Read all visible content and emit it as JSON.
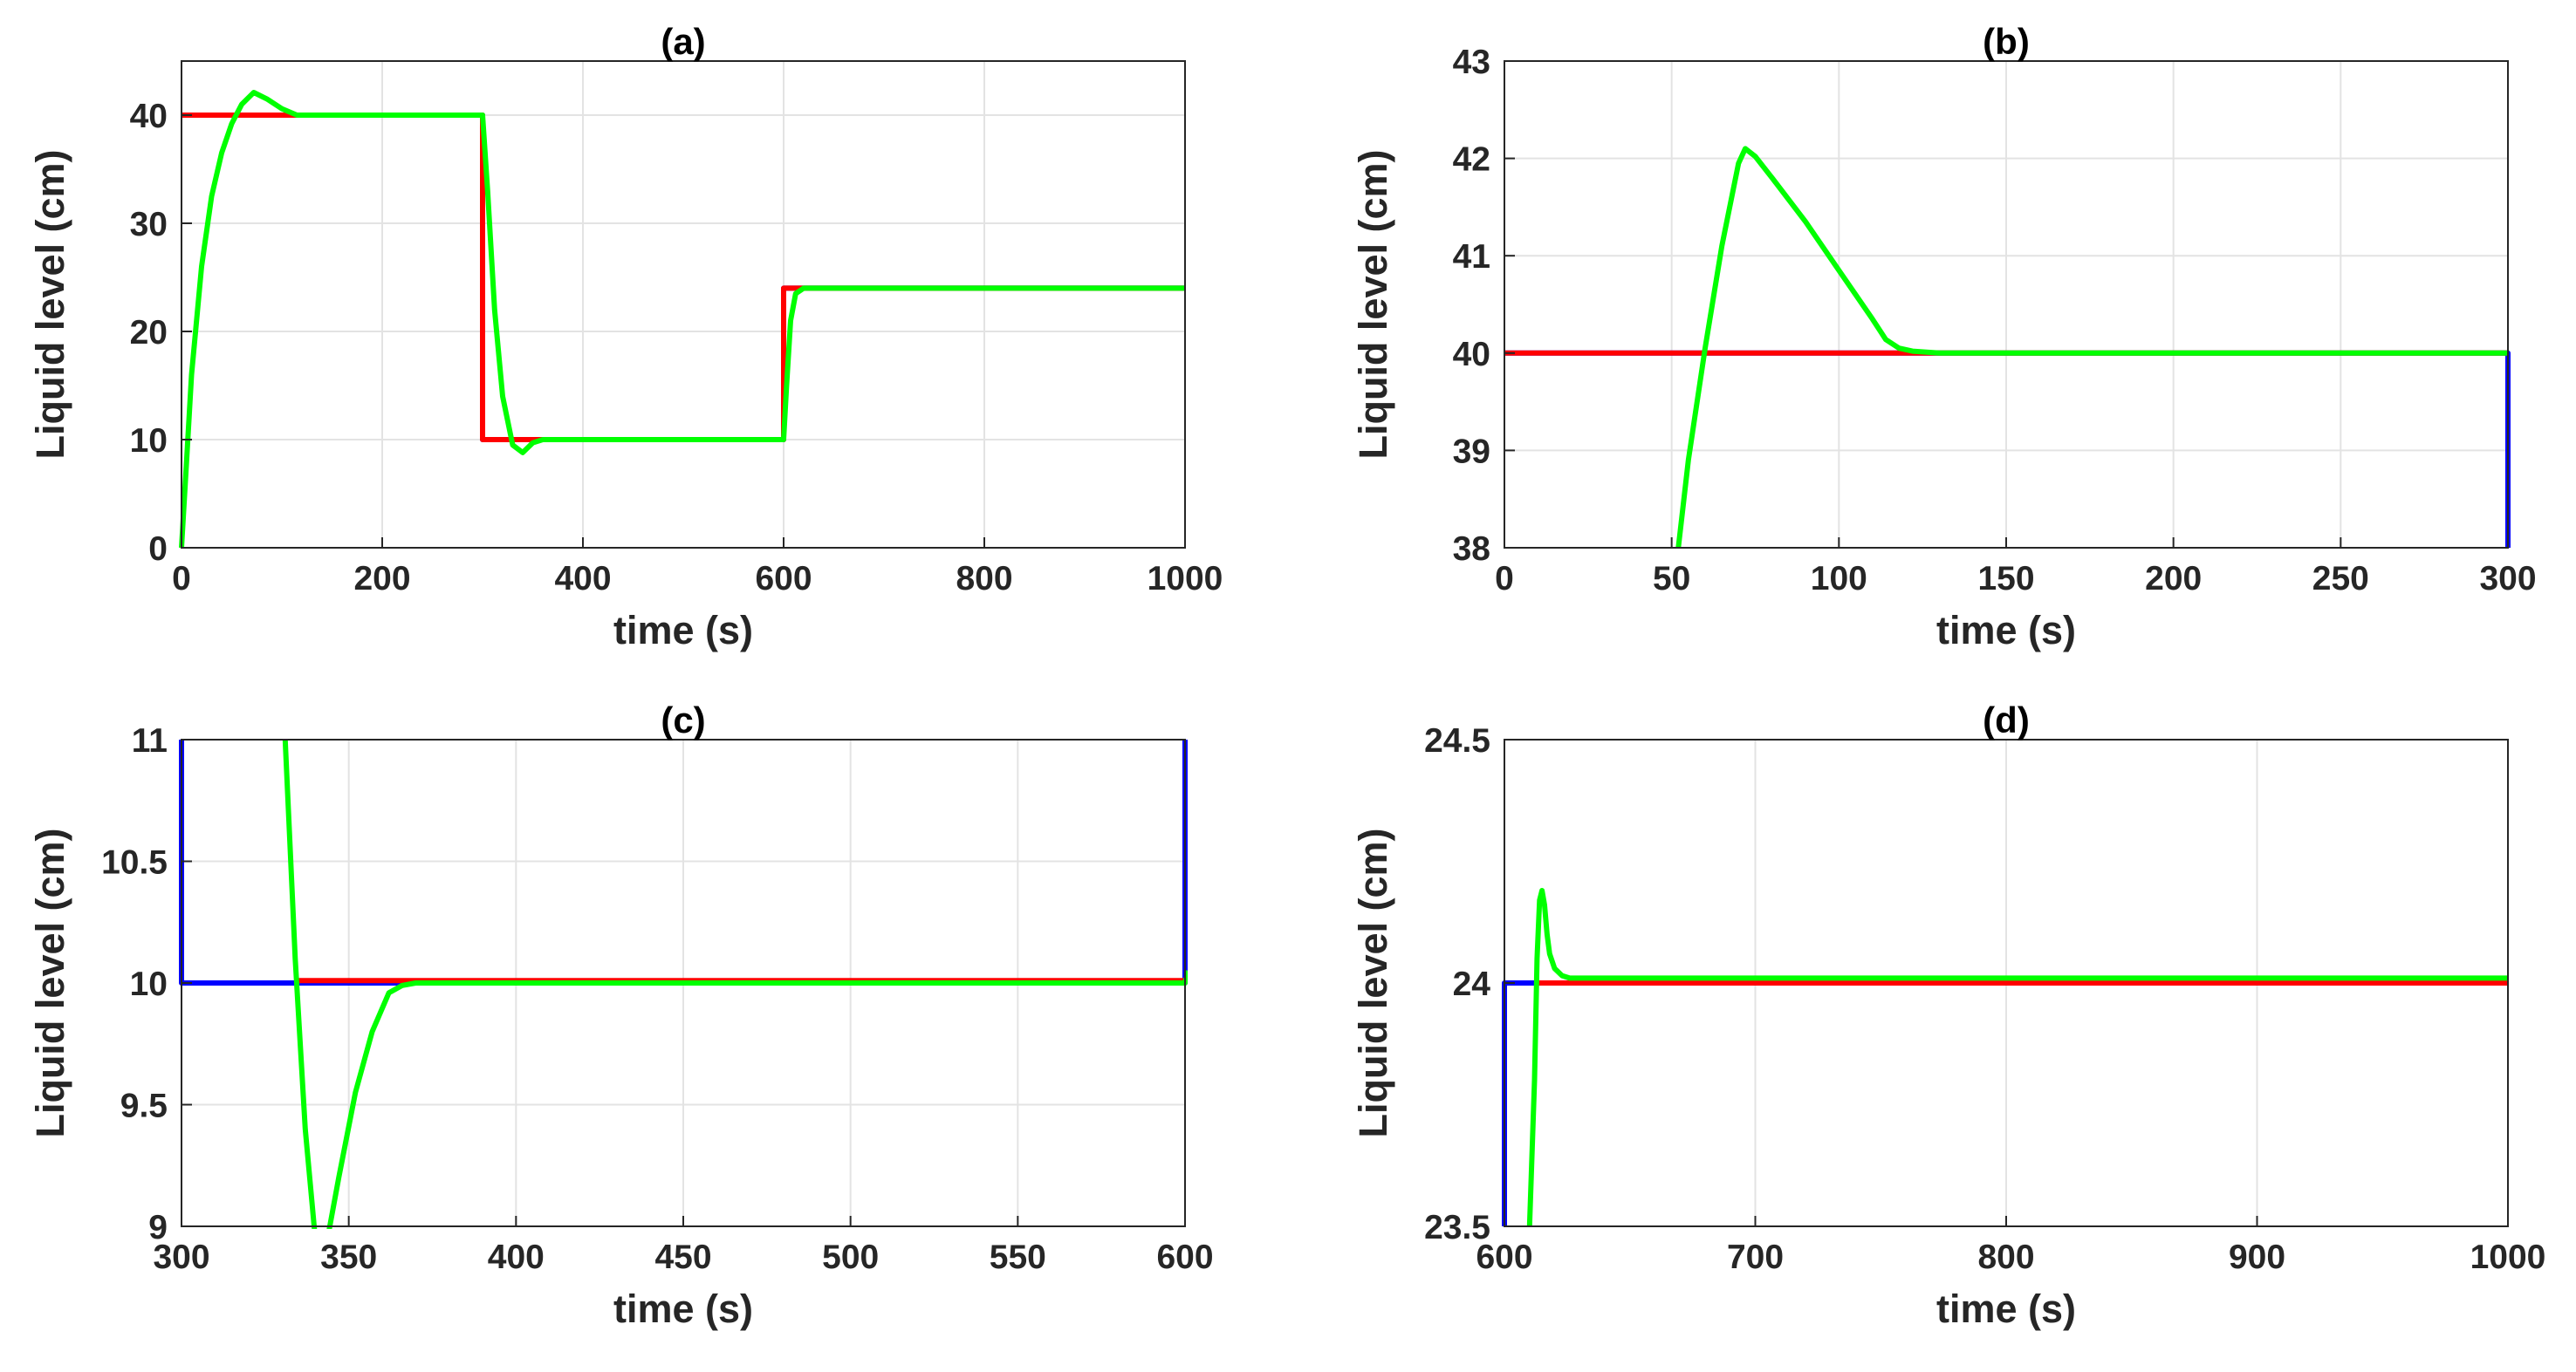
{
  "colors": {
    "setpoint": "#0000ff",
    "response_a": "#ff0000",
    "response_b": "#00ff00"
  },
  "chart_data": [
    {
      "type": "line",
      "title": "(a)",
      "xlabel": "time (s)",
      "ylabel": "Liquid level (cm)",
      "xlim": [
        0,
        1000
      ],
      "ylim": [
        0,
        45
      ],
      "xticks": [
        0,
        200,
        400,
        600,
        800,
        1000
      ],
      "yticks": [
        0,
        10,
        20,
        30,
        40
      ],
      "grid": true,
      "series": [
        {
          "color": "#0000ff",
          "x": [
            0,
            300,
            300,
            600,
            600,
            1000
          ],
          "y": [
            40,
            40,
            10,
            10,
            24,
            24
          ]
        },
        {
          "color": "#ff0000",
          "x": [
            0,
            300,
            300,
            600,
            600,
            1000
          ],
          "y": [
            40,
            40,
            10,
            10,
            24,
            24
          ]
        },
        {
          "color": "#00ff00",
          "x": [
            0,
            5,
            10,
            20,
            30,
            40,
            50,
            60,
            72,
            85,
            100,
            115,
            300,
            305,
            312,
            320,
            330,
            340,
            350,
            360,
            600,
            603,
            607,
            612,
            620,
            1000
          ],
          "y": [
            0,
            8,
            16,
            26,
            32.5,
            36.5,
            39.2,
            41,
            42.1,
            41.5,
            40.6,
            40,
            40,
            33,
            22,
            14,
            9.5,
            8.8,
            9.7,
            10,
            10,
            15,
            21,
            23.5,
            24,
            24
          ]
        }
      ]
    },
    {
      "type": "line",
      "title": "(b)",
      "xlabel": "time (s)",
      "ylabel": "Liquid level (cm)",
      "xlim": [
        0,
        300
      ],
      "ylim": [
        38,
        43
      ],
      "xticks": [
        0,
        50,
        100,
        150,
        200,
        250,
        300
      ],
      "yticks": [
        38,
        39,
        40,
        41,
        42,
        43
      ],
      "grid": true,
      "series": [
        {
          "color": "#0000ff",
          "x": [
            0,
            300,
            300
          ],
          "y": [
            40,
            40,
            38
          ]
        },
        {
          "color": "#ff0000",
          "x": [
            0,
            300
          ],
          "y": [
            40,
            40
          ]
        },
        {
          "color": "#00ff00",
          "x": [
            52,
            55,
            60,
            65,
            70,
            72,
            75,
            80,
            90,
            100,
            110,
            114,
            118,
            122,
            130,
            300
          ],
          "y": [
            38,
            38.9,
            40.05,
            41.1,
            41.95,
            42.1,
            42.02,
            41.8,
            41.35,
            40.85,
            40.35,
            40.14,
            40.05,
            40.02,
            40,
            40
          ]
        }
      ]
    },
    {
      "type": "line",
      "title": "(c)",
      "xlabel": "time (s)",
      "ylabel": "Liquid level (cm)",
      "xlim": [
        300,
        600
      ],
      "ylim": [
        9,
        11
      ],
      "xticks": [
        300,
        350,
        400,
        450,
        500,
        550,
        600
      ],
      "yticks": [
        9,
        9.5,
        10,
        10.5,
        11
      ],
      "grid": true,
      "series": [
        {
          "color": "#0000ff",
          "x": [
            300,
            300,
            600,
            600
          ],
          "y": [
            11,
            10,
            10,
            11
          ]
        },
        {
          "color": "#ff0000",
          "x": [
            334,
            600
          ],
          "y": [
            10.01,
            10.01
          ]
        },
        {
          "color": "#00ff00",
          "x": [
            331,
            334,
            337,
            340,
            343,
            347,
            352,
            357,
            362,
            366,
            370,
            380,
            600,
            601
          ],
          "y": [
            11,
            10.1,
            9.4,
            8.95,
            8.9,
            9.2,
            9.55,
            9.8,
            9.96,
            9.99,
            10,
            10,
            10,
            10.05
          ]
        }
      ]
    },
    {
      "type": "line",
      "title": "(d)",
      "xlabel": "time (s)",
      "ylabel": "Liquid level (cm)",
      "xlim": [
        600,
        1000
      ],
      "ylim": [
        23.5,
        24.5
      ],
      "xticks": [
        600,
        700,
        800,
        900,
        1000
      ],
      "yticks": [
        23.5,
        24,
        24.5
      ],
      "grid": true,
      "series": [
        {
          "color": "#0000ff",
          "x": [
            600,
            600,
            612
          ],
          "y": [
            23.5,
            24,
            24
          ]
        },
        {
          "color": "#ff0000",
          "x": [
            612,
            1000
          ],
          "y": [
            24.0,
            24.0
          ]
        },
        {
          "color": "#00ff00",
          "x": [
            610,
            612,
            613,
            614,
            615,
            616,
            617,
            618,
            620,
            623,
            626,
            630,
            1000
          ],
          "y": [
            23.5,
            23.8,
            24.05,
            24.17,
            24.19,
            24.16,
            24.1,
            24.06,
            24.03,
            24.015,
            24.01,
            24.01,
            24.01
          ]
        }
      ]
    }
  ]
}
